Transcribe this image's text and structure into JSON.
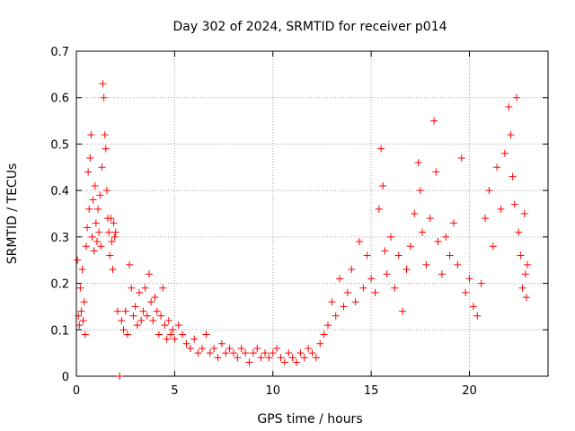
{
  "chart_data": {
    "type": "scatter",
    "title": "Day 302 of 2024, SRMTID for receiver p014",
    "xlabel": "GPS time / hours",
    "ylabel": "SRMTID / TECUs",
    "xlim": [
      0,
      24
    ],
    "ylim": [
      0,
      0.7
    ],
    "xticks": [
      0,
      5,
      10,
      15,
      20
    ],
    "yticks": [
      0,
      0.1,
      0.2,
      0.3,
      0.4,
      0.5,
      0.6,
      0.7
    ],
    "xtick_labels": [
      "0",
      "5",
      "10",
      "15",
      "20"
    ],
    "ytick_labels": [
      "0",
      "0.1",
      "0.2",
      "0.3",
      "0.4",
      "0.5",
      "0.6",
      "0.7"
    ],
    "grid": true,
    "marker": "+",
    "color": "#ff0000",
    "series": [
      {
        "name": "SRMTID",
        "points": [
          [
            0.05,
            0.25
          ],
          [
            0.1,
            0.13
          ],
          [
            0.15,
            0.11
          ],
          [
            0.2,
            0.19
          ],
          [
            0.25,
            0.14
          ],
          [
            0.3,
            0.23
          ],
          [
            0.35,
            0.12
          ],
          [
            0.4,
            0.16
          ],
          [
            0.45,
            0.09
          ],
          [
            0.5,
            0.28
          ],
          [
            0.55,
            0.32
          ],
          [
            0.6,
            0.44
          ],
          [
            0.65,
            0.36
          ],
          [
            0.7,
            0.47
          ],
          [
            0.75,
            0.52
          ],
          [
            0.8,
            0.3
          ],
          [
            0.85,
            0.38
          ],
          [
            0.9,
            0.27
          ],
          [
            0.95,
            0.41
          ],
          [
            1.0,
            0.33
          ],
          [
            1.05,
            0.29
          ],
          [
            1.1,
            0.36
          ],
          [
            1.15,
            0.31
          ],
          [
            1.2,
            0.39
          ],
          [
            1.25,
            0.28
          ],
          [
            1.3,
            0.45
          ],
          [
            1.35,
            0.63
          ],
          [
            1.4,
            0.6
          ],
          [
            1.45,
            0.52
          ],
          [
            1.5,
            0.49
          ],
          [
            1.55,
            0.4
          ],
          [
            1.6,
            0.34
          ],
          [
            1.65,
            0.31
          ],
          [
            1.7,
            0.26
          ],
          [
            1.75,
            0.34
          ],
          [
            1.8,
            0.29
          ],
          [
            1.85,
            0.23
          ],
          [
            1.9,
            0.33
          ],
          [
            1.95,
            0.3
          ],
          [
            2.0,
            0.31
          ],
          [
            2.1,
            0.14
          ],
          [
            2.2,
            0.0
          ],
          [
            2.3,
            0.12
          ],
          [
            2.4,
            0.1
          ],
          [
            2.5,
            0.14
          ],
          [
            2.6,
            0.09
          ],
          [
            2.7,
            0.24
          ],
          [
            2.8,
            0.19
          ],
          [
            2.9,
            0.13
          ],
          [
            3.0,
            0.15
          ],
          [
            3.1,
            0.11
          ],
          [
            3.2,
            0.18
          ],
          [
            3.3,
            0.12
          ],
          [
            3.4,
            0.14
          ],
          [
            3.5,
            0.19
          ],
          [
            3.6,
            0.13
          ],
          [
            3.7,
            0.22
          ],
          [
            3.8,
            0.16
          ],
          [
            3.9,
            0.12
          ],
          [
            4.0,
            0.17
          ],
          [
            4.1,
            0.14
          ],
          [
            4.2,
            0.09
          ],
          [
            4.3,
            0.13
          ],
          [
            4.4,
            0.19
          ],
          [
            4.5,
            0.11
          ],
          [
            4.6,
            0.08
          ],
          [
            4.7,
            0.12
          ],
          [
            4.8,
            0.09
          ],
          [
            4.9,
            0.1
          ],
          [
            5.0,
            0.08
          ],
          [
            5.2,
            0.11
          ],
          [
            5.4,
            0.09
          ],
          [
            5.6,
            0.07
          ],
          [
            5.8,
            0.06
          ],
          [
            6.0,
            0.08
          ],
          [
            6.2,
            0.05
          ],
          [
            6.4,
            0.06
          ],
          [
            6.6,
            0.09
          ],
          [
            6.8,
            0.05
          ],
          [
            7.0,
            0.06
          ],
          [
            7.2,
            0.04
          ],
          [
            7.4,
            0.07
          ],
          [
            7.6,
            0.05
          ],
          [
            7.8,
            0.06
          ],
          [
            8.0,
            0.05
          ],
          [
            8.2,
            0.04
          ],
          [
            8.4,
            0.06
          ],
          [
            8.6,
            0.05
          ],
          [
            8.8,
            0.03
          ],
          [
            9.0,
            0.05
          ],
          [
            9.2,
            0.06
          ],
          [
            9.4,
            0.04
          ],
          [
            9.6,
            0.05
          ],
          [
            9.8,
            0.04
          ],
          [
            10.0,
            0.05
          ],
          [
            10.2,
            0.06
          ],
          [
            10.4,
            0.04
          ],
          [
            10.6,
            0.03
          ],
          [
            10.8,
            0.05
          ],
          [
            11.0,
            0.04
          ],
          [
            11.2,
            0.03
          ],
          [
            11.4,
            0.05
          ],
          [
            11.6,
            0.04
          ],
          [
            11.8,
            0.06
          ],
          [
            12.0,
            0.05
          ],
          [
            12.2,
            0.04
          ],
          [
            12.4,
            0.07
          ],
          [
            12.6,
            0.09
          ],
          [
            12.8,
            0.11
          ],
          [
            13.0,
            0.16
          ],
          [
            13.2,
            0.13
          ],
          [
            13.4,
            0.21
          ],
          [
            13.6,
            0.15
          ],
          [
            13.8,
            0.18
          ],
          [
            14.0,
            0.23
          ],
          [
            14.2,
            0.16
          ],
          [
            14.4,
            0.29
          ],
          [
            14.6,
            0.19
          ],
          [
            14.8,
            0.26
          ],
          [
            15.0,
            0.21
          ],
          [
            15.2,
            0.18
          ],
          [
            15.4,
            0.36
          ],
          [
            15.5,
            0.49
          ],
          [
            15.6,
            0.41
          ],
          [
            15.7,
            0.27
          ],
          [
            15.8,
            0.22
          ],
          [
            16.0,
            0.3
          ],
          [
            16.2,
            0.19
          ],
          [
            16.4,
            0.26
          ],
          [
            16.6,
            0.14
          ],
          [
            16.8,
            0.23
          ],
          [
            17.0,
            0.28
          ],
          [
            17.2,
            0.35
          ],
          [
            17.4,
            0.46
          ],
          [
            17.5,
            0.4
          ],
          [
            17.6,
            0.31
          ],
          [
            17.8,
            0.24
          ],
          [
            18.0,
            0.34
          ],
          [
            18.2,
            0.55
          ],
          [
            18.3,
            0.44
          ],
          [
            18.4,
            0.29
          ],
          [
            18.6,
            0.22
          ],
          [
            18.8,
            0.3
          ],
          [
            19.0,
            0.26
          ],
          [
            19.2,
            0.33
          ],
          [
            19.4,
            0.24
          ],
          [
            19.6,
            0.47
          ],
          [
            19.8,
            0.18
          ],
          [
            20.0,
            0.21
          ],
          [
            20.2,
            0.15
          ],
          [
            20.4,
            0.13
          ],
          [
            20.6,
            0.2
          ],
          [
            20.8,
            0.34
          ],
          [
            21.0,
            0.4
          ],
          [
            21.2,
            0.28
          ],
          [
            21.4,
            0.45
          ],
          [
            21.6,
            0.36
          ],
          [
            21.8,
            0.48
          ],
          [
            22.0,
            0.58
          ],
          [
            22.1,
            0.52
          ],
          [
            22.2,
            0.43
          ],
          [
            22.3,
            0.37
          ],
          [
            22.4,
            0.6
          ],
          [
            22.5,
            0.31
          ],
          [
            22.6,
            0.26
          ],
          [
            22.7,
            0.19
          ],
          [
            22.8,
            0.35
          ],
          [
            22.85,
            0.22
          ],
          [
            22.9,
            0.17
          ],
          [
            22.95,
            0.24
          ]
        ]
      }
    ]
  }
}
